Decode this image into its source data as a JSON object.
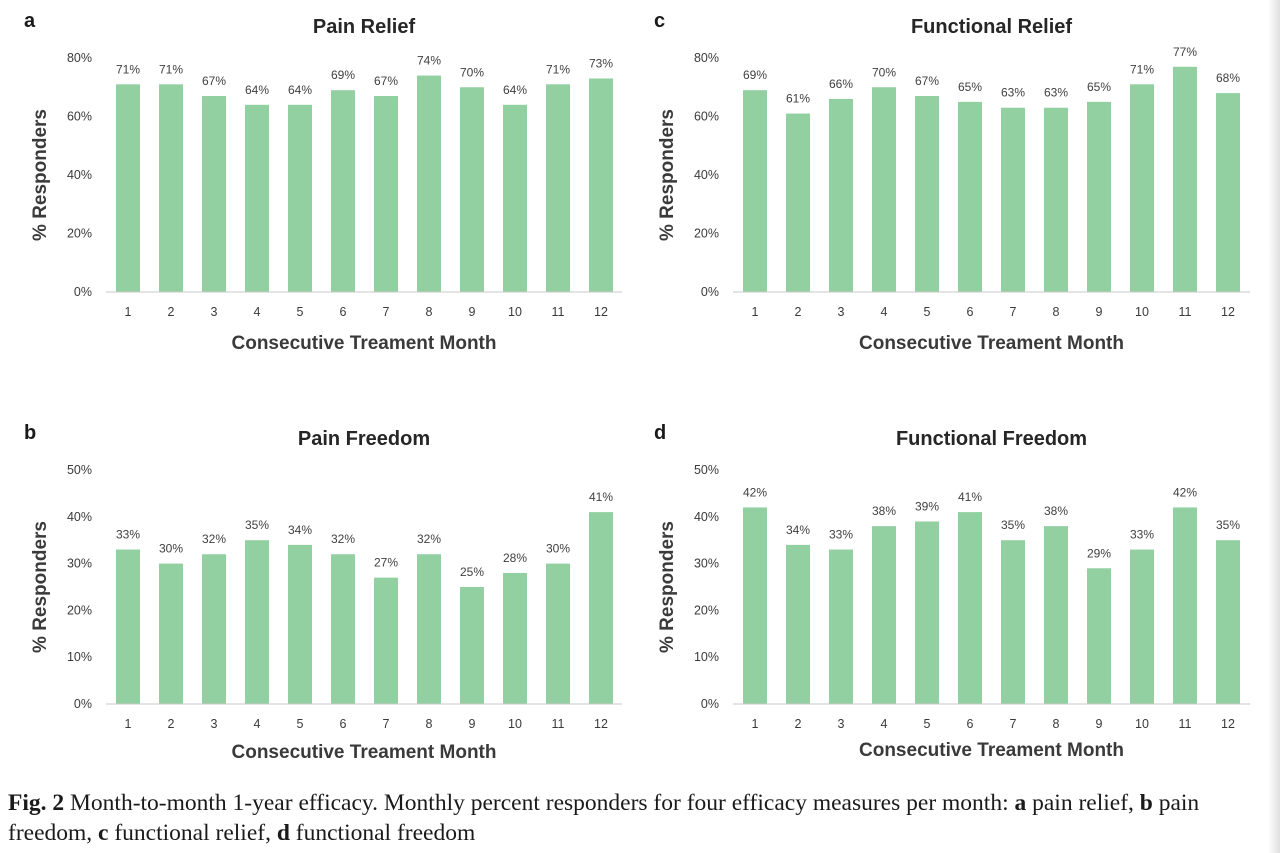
{
  "chart_data": [
    {
      "panel": "a",
      "type": "bar",
      "title": "Pain Relief",
      "xlabel": "Consecutive Treament Month",
      "ylabel": "% Responders",
      "categories": [
        "1",
        "2",
        "3",
        "4",
        "5",
        "6",
        "7",
        "8",
        "9",
        "10",
        "11",
        "12"
      ],
      "values": [
        71,
        71,
        67,
        64,
        64,
        69,
        67,
        74,
        70,
        64,
        71,
        73
      ],
      "data_labels": [
        "71%",
        "71%",
        "67%",
        "64%",
        "64%",
        "69%",
        "67%",
        "74%",
        "70%",
        "64%",
        "71%",
        "73%"
      ],
      "yticks": [
        "0%",
        "20%",
        "40%",
        "60%",
        "80%"
      ],
      "ylim": [
        0,
        80
      ],
      "color": "#92cfa1",
      "grid": false
    },
    {
      "panel": "b",
      "type": "bar",
      "title": "Pain Freedom",
      "xlabel": "Consecutive Treament Month",
      "ylabel": "% Responders",
      "categories": [
        "1",
        "2",
        "3",
        "4",
        "5",
        "6",
        "7",
        "8",
        "9",
        "10",
        "11",
        "12"
      ],
      "values": [
        33,
        30,
        32,
        35,
        34,
        32,
        27,
        32,
        25,
        28,
        30,
        41
      ],
      "data_labels": [
        "33%",
        "30%",
        "32%",
        "35%",
        "34%",
        "32%",
        "27%",
        "32%",
        "25%",
        "28%",
        "30%",
        "41%"
      ],
      "yticks": [
        "0%",
        "10%",
        "20%",
        "30%",
        "40%",
        "50%"
      ],
      "ylim": [
        0,
        50
      ],
      "color": "#92cfa1",
      "grid": false
    },
    {
      "panel": "c",
      "type": "bar",
      "title": "Functional Relief",
      "xlabel": "Consecutive Treament Month",
      "ylabel": "% Responders",
      "categories": [
        "1",
        "2",
        "3",
        "4",
        "5",
        "6",
        "7",
        "8",
        "9",
        "10",
        "11",
        "12"
      ],
      "values": [
        69,
        61,
        66,
        70,
        67,
        65,
        63,
        63,
        65,
        71,
        77,
        68
      ],
      "data_labels": [
        "69%",
        "61%",
        "66%",
        "70%",
        "67%",
        "65%",
        "63%",
        "63%",
        "65%",
        "71%",
        "77%",
        "68%"
      ],
      "yticks": [
        "0%",
        "20%",
        "40%",
        "60%",
        "80%"
      ],
      "ylim": [
        0,
        80
      ],
      "color": "#92cfa1",
      "grid": false
    },
    {
      "panel": "d",
      "type": "bar",
      "title": "Functional Freedom",
      "xlabel": "Consecutive Treament Month",
      "ylabel": "% Responders",
      "categories": [
        "1",
        "2",
        "3",
        "4",
        "5",
        "6",
        "7",
        "8",
        "9",
        "10",
        "11",
        "12"
      ],
      "values": [
        42,
        34,
        33,
        38,
        39,
        41,
        35,
        38,
        29,
        33,
        42,
        35
      ],
      "data_labels": [
        "42%",
        "34%",
        "33%",
        "38%",
        "39%",
        "41%",
        "35%",
        "38%",
        "29%",
        "33%",
        "42%",
        "35%"
      ],
      "yticks": [
        "0%",
        "10%",
        "20%",
        "30%",
        "40%",
        "50%"
      ],
      "ylim": [
        0,
        50
      ],
      "color": "#92cfa1",
      "grid": false
    }
  ],
  "caption": {
    "fig_label": "Fig. 2",
    "intro": " Month-to-month 1-year efficacy. Monthly percent responders for four efficacy measures per month: ",
    "items": [
      {
        "letter": "a",
        "text": " pain relief, "
      },
      {
        "letter": "b",
        "text": " pain freedom, "
      },
      {
        "letter": "c",
        "text": " functional relief, "
      },
      {
        "letter": "d",
        "text": " functional freedom"
      }
    ]
  }
}
